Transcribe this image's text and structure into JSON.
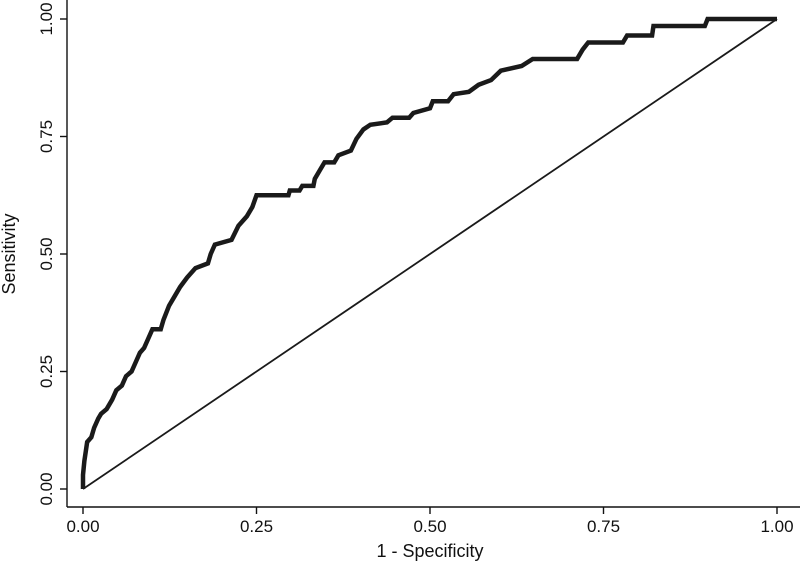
{
  "chart_data": {
    "type": "line",
    "title": "",
    "xlabel": "1 - Specificity",
    "ylabel": "Sensitivity",
    "xlim": [
      0,
      1
    ],
    "ylim": [
      0,
      1
    ],
    "grid": false,
    "x_ticks": [
      "0.00",
      "0.25",
      "0.50",
      "0.75",
      "1.00"
    ],
    "y_ticks": [
      "0.00",
      "0.25",
      "0.50",
      "0.75",
      "1.00"
    ],
    "series": [
      {
        "points": [
          [
            0.0,
            0.0
          ],
          [
            0.0,
            0.03
          ],
          [
            0.002,
            0.06
          ],
          [
            0.004,
            0.08
          ],
          [
            0.006,
            0.1
          ],
          [
            0.012,
            0.11
          ],
          [
            0.016,
            0.13
          ],
          [
            0.022,
            0.15
          ],
          [
            0.026,
            0.16
          ],
          [
            0.034,
            0.17
          ],
          [
            0.042,
            0.19
          ],
          [
            0.048,
            0.21
          ],
          [
            0.056,
            0.22
          ],
          [
            0.062,
            0.24
          ],
          [
            0.07,
            0.25
          ],
          [
            0.076,
            0.27
          ],
          [
            0.082,
            0.29
          ],
          [
            0.088,
            0.3
          ],
          [
            0.094,
            0.32
          ],
          [
            0.1,
            0.34
          ],
          [
            0.112,
            0.34
          ],
          [
            0.116,
            0.36
          ],
          [
            0.124,
            0.39
          ],
          [
            0.132,
            0.41
          ],
          [
            0.14,
            0.43
          ],
          [
            0.15,
            0.45
          ],
          [
            0.162,
            0.47
          ],
          [
            0.18,
            0.48
          ],
          [
            0.184,
            0.5
          ],
          [
            0.19,
            0.52
          ],
          [
            0.214,
            0.53
          ],
          [
            0.224,
            0.56
          ],
          [
            0.236,
            0.58
          ],
          [
            0.244,
            0.6
          ],
          [
            0.25,
            0.625
          ],
          [
            0.296,
            0.625
          ],
          [
            0.298,
            0.635
          ],
          [
            0.312,
            0.635
          ],
          [
            0.316,
            0.645
          ],
          [
            0.332,
            0.645
          ],
          [
            0.334,
            0.66
          ],
          [
            0.342,
            0.68
          ],
          [
            0.348,
            0.695
          ],
          [
            0.362,
            0.695
          ],
          [
            0.368,
            0.71
          ],
          [
            0.386,
            0.72
          ],
          [
            0.394,
            0.745
          ],
          [
            0.404,
            0.765
          ],
          [
            0.414,
            0.775
          ],
          [
            0.438,
            0.78
          ],
          [
            0.446,
            0.79
          ],
          [
            0.47,
            0.79
          ],
          [
            0.476,
            0.8
          ],
          [
            0.5,
            0.81
          ],
          [
            0.504,
            0.825
          ],
          [
            0.526,
            0.825
          ],
          [
            0.534,
            0.84
          ],
          [
            0.556,
            0.845
          ],
          [
            0.57,
            0.86
          ],
          [
            0.588,
            0.87
          ],
          [
            0.602,
            0.89
          ],
          [
            0.632,
            0.9
          ],
          [
            0.648,
            0.915
          ],
          [
            0.712,
            0.915
          ],
          [
            0.72,
            0.935
          ],
          [
            0.728,
            0.95
          ],
          [
            0.778,
            0.95
          ],
          [
            0.784,
            0.965
          ],
          [
            0.82,
            0.965
          ],
          [
            0.822,
            0.985
          ],
          [
            0.896,
            0.985
          ],
          [
            0.9,
            1.0
          ],
          [
            1.0,
            1.0
          ]
        ]
      },
      {
        "points": [
          [
            0,
            0
          ],
          [
            1,
            1
          ]
        ]
      }
    ]
  }
}
